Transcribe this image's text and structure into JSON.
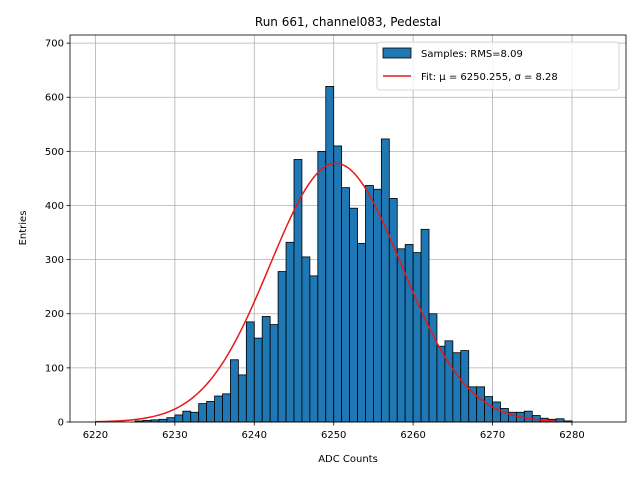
{
  "chart_data": {
    "type": "bar",
    "title": "Run 661, channel083, Pedestal",
    "xlabel": "ADC Counts",
    "ylabel": "Entries",
    "xlim": [
      6216.8,
      6286.8
    ],
    "ylim": [
      0,
      715
    ],
    "xticks": [
      6220,
      6230,
      6240,
      6250,
      6260,
      6270,
      6280
    ],
    "yticks": [
      0,
      100,
      200,
      300,
      400,
      500,
      600,
      700
    ],
    "grid": true,
    "legend_position": "top-right",
    "colors": {
      "bars": "#1f77b4",
      "bar_edge": "#000000",
      "fit": "#e41a1c"
    },
    "histogram": {
      "name": "Samples: RMS=8.09",
      "bin_width": 1,
      "bin_start": 6225,
      "values": [
        2,
        3,
        4,
        5,
        8,
        13,
        20,
        18,
        34,
        38,
        48,
        52,
        115,
        87,
        185,
        155,
        195,
        180,
        278,
        332,
        485,
        305,
        270,
        500,
        620,
        510,
        433,
        395,
        330,
        437,
        430,
        523,
        413,
        320,
        328,
        313,
        356,
        200,
        140,
        150,
        128,
        132,
        65,
        65,
        47,
        37,
        25,
        18,
        18,
        20,
        12,
        7,
        5,
        6,
        2
      ]
    },
    "fit": {
      "name": "Fit: μ = 6250.255, σ = 8.28",
      "mu": 6250.255,
      "sigma": 8.28,
      "amplitude": 478,
      "x_range": [
        6220,
        6278
      ]
    }
  }
}
